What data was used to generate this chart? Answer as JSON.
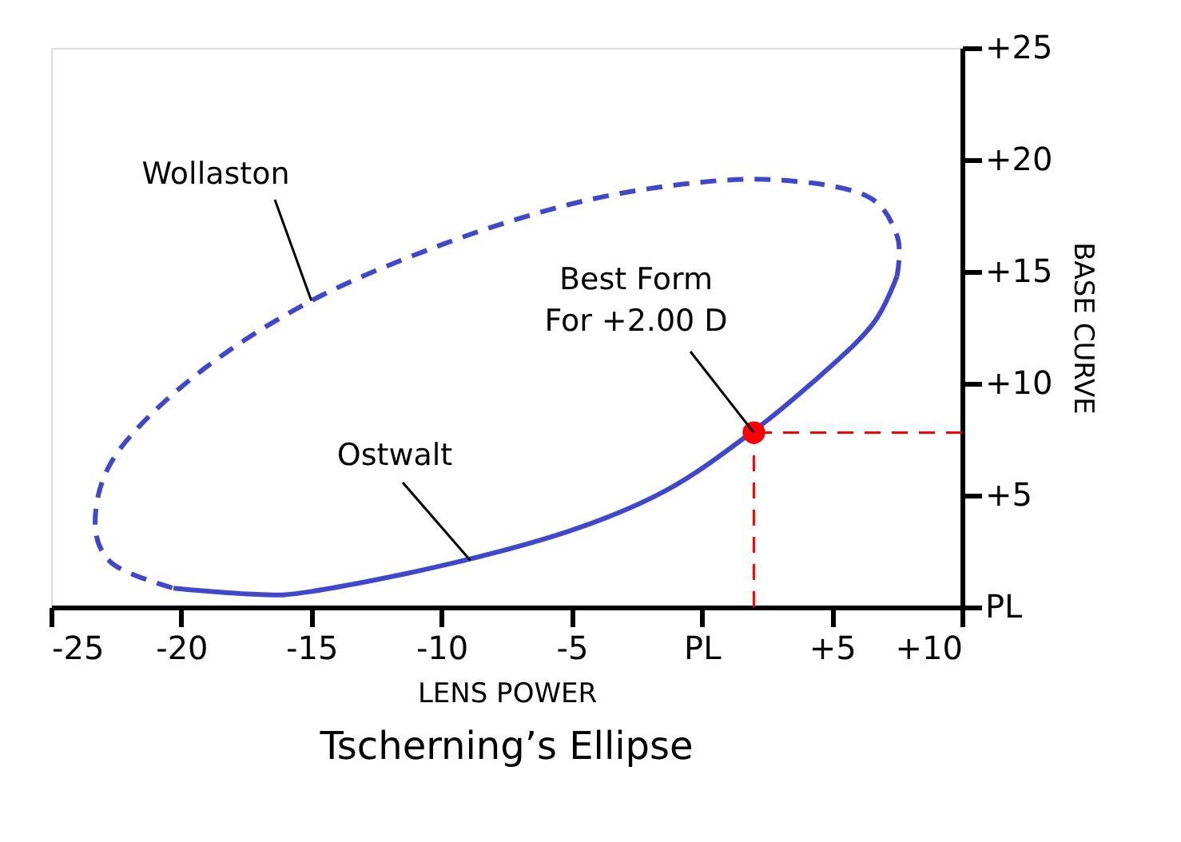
{
  "chart_data": {
    "type": "line",
    "title": "Tscherning’s Ellipse",
    "xlabel": "LENS POWER",
    "ylabel": "BASE CURVE",
    "xlim": [
      -25,
      10
    ],
    "ylim": [
      0,
      25
    ],
    "xticks": [
      -25,
      -20,
      -15,
      -10,
      -5,
      {
        "value": 0,
        "label": "PL"
      },
      {
        "value": 5,
        "label": "+5"
      },
      {
        "value": 10,
        "label": "+10"
      }
    ],
    "yticks": [
      {
        "value": 0,
        "label": "PL"
      },
      {
        "value": 5,
        "label": "+5"
      },
      {
        "value": 10,
        "label": "+10"
      },
      {
        "value": 15,
        "label": "+15"
      },
      {
        "value": 20,
        "label": "+20"
      },
      {
        "value": 25,
        "label": "+25"
      }
    ],
    "grid": false,
    "series": [
      {
        "color": "#3f48cc",
        "line_style": "solid",
        "x": [
          -20.3,
          -17.1,
          -15.0,
          -10.0,
          -5.1,
          -1.4,
          1.9,
          4.7,
          6.6,
          7.5
        ],
        "values": [
          0.85,
          0.57,
          0.7,
          1.85,
          3.4,
          5.2,
          7.8,
          10.5,
          12.7,
          14.8
        ]
      },
      {
        "color": "#3f48cc",
        "line_style": "dashed",
        "x": [
          7.5,
          7.5,
          6.3,
          2.9,
          -0.8,
          -5.1,
          -10.0,
          -15.0,
          -19.3,
          -22.4,
          -23.3,
          -22.7,
          -20.3
        ],
        "values": [
          14.8,
          16.6,
          18.4,
          19.1,
          18.9,
          18.0,
          16.2,
          13.7,
          10.5,
          7.0,
          4.1,
          2.0,
          0.85
        ]
      },
      {
        "type": "line",
        "color": "#ff0000",
        "line_style": "dashed",
        "x": [
          2,
          2
        ],
        "values": [
          0,
          7.8
        ]
      },
      {
        "type": "line",
        "color": "#ff0000",
        "line_style": "dashed",
        "x": [
          10,
          2
        ],
        "values": [
          7.8,
          7.8
        ]
      },
      {
        "type": "scatter",
        "color": "#ff0000",
        "marker": "circle",
        "x": [
          2
        ],
        "values": [
          7.8
        ]
      }
    ],
    "annotations": [
      {
        "text": "Wollaston",
        "x": -15.0,
        "y": 13.7
      },
      {
        "text": "Ostwalt",
        "x": -8.9,
        "y": 2.1
      },
      {
        "text": "Best Form\nFor +2.00 D",
        "x": 2,
        "y": 7.8
      }
    ]
  }
}
